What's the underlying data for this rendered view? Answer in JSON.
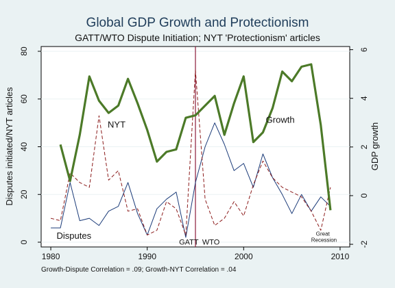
{
  "chart_data": {
    "type": "line",
    "title": "Global GDP Growth and Protectionism",
    "subtitle": "GATT/WTO Dispute Initiation; NYT 'Protectionism' articles",
    "ylabel": "Disputes initiated/NYT articles",
    "y2label": "GDP growth",
    "note": "Growth-Dispute Correlation = .09; Growth-NYT Correlation = .04",
    "xlim": [
      1979,
      2011
    ],
    "xticks": [
      1980,
      1990,
      2000,
      2010
    ],
    "ylim": [
      -2,
      82
    ],
    "yticks": [
      0,
      20,
      40,
      60,
      80
    ],
    "y2lim": [
      -2.11,
      6.13
    ],
    "y2ticks": [
      -2,
      0,
      2,
      4,
      6
    ],
    "grid": true,
    "colors": {
      "growth": "#4c7a28",
      "nyt": "#8b1a1a",
      "disputes": "#1a3a78",
      "divider": "#8b1a3a"
    },
    "series": [
      {
        "name": "Disputes",
        "axis": "left",
        "x": [
          1980,
          1981,
          1982,
          1983,
          1984,
          1985,
          1986,
          1987,
          1988,
          1989,
          1990,
          1991,
          1992,
          1993,
          1994,
          1995,
          1996,
          1997,
          1998,
          1999,
          2000,
          2001,
          2002,
          2003,
          2004,
          2005,
          2006,
          2007,
          2008,
          2009
        ],
        "values": [
          6,
          6,
          25,
          9,
          10,
          7,
          13,
          15,
          25,
          12,
          3,
          14,
          18,
          21,
          2,
          25,
          40,
          50,
          41,
          30,
          33,
          23,
          37,
          27,
          20,
          12,
          20,
          13,
          19,
          15
        ]
      },
      {
        "name": "NYT",
        "axis": "left",
        "x": [
          1980,
          1981,
          1982,
          1983,
          1984,
          1985,
          1986,
          1987,
          1988,
          1989,
          1990,
          1991,
          1992,
          1993,
          1994,
          1995,
          1996,
          1997,
          1998,
          1999,
          2000,
          2001,
          2002,
          2003,
          2004,
          2005,
          2006,
          2007,
          2008,
          2009
        ],
        "values": [
          10,
          9,
          29,
          25,
          23,
          53,
          26,
          30,
          13,
          14,
          3,
          5,
          17,
          14,
          3,
          72,
          18,
          7,
          10,
          17,
          11,
          24,
          34,
          27,
          23,
          21,
          19,
          13,
          5,
          23
        ]
      },
      {
        "name": "Growth",
        "axis": "right",
        "x": [
          1981,
          1982,
          1983,
          1984,
          1985,
          1986,
          1987,
          1988,
          1989,
          1990,
          1991,
          1992,
          1993,
          1994,
          1995,
          1996,
          1997,
          1998,
          1999,
          2000,
          2001,
          2002,
          2003,
          2004,
          2005,
          2006,
          2007,
          2008,
          2009
        ],
        "values": [
          2.1,
          0.6,
          2.5,
          4.9,
          3.9,
          3.4,
          3.7,
          4.8,
          3.8,
          2.7,
          1.4,
          1.8,
          1.9,
          3.2,
          3.3,
          3.7,
          4.1,
          2.5,
          3.8,
          4.9,
          2.2,
          2.6,
          3.6,
          5.1,
          4.7,
          5.3,
          5.4,
          2.9,
          -0.6
        ]
      }
    ],
    "annotations": [
      {
        "text": "NYT",
        "x": 1985.9,
        "y": 48,
        "axis": "left",
        "size": "annot"
      },
      {
        "text": "Growth",
        "x": 2002.3,
        "y": 3,
        "axis": "right",
        "size": "annot"
      },
      {
        "text": "Disputes",
        "x": 1980.6,
        "y": 1.5,
        "axis": "left",
        "size": "annot"
      },
      {
        "text": "GATT",
        "x": 1993.3,
        "y": -1,
        "axis": "left",
        "size": "annot-small"
      },
      {
        "text": "WTO",
        "x": 1995.7,
        "y": -1,
        "axis": "left",
        "size": "annot-small"
      },
      {
        "text": "Great",
        "x": 2007.5,
        "y": 2.7,
        "axis": "left",
        "size": "annot-tiny"
      },
      {
        "text": "Recession",
        "x": 2007.0,
        "y": 0.2,
        "axis": "left",
        "size": "annot-tiny"
      }
    ],
    "divider_x": 1995
  }
}
